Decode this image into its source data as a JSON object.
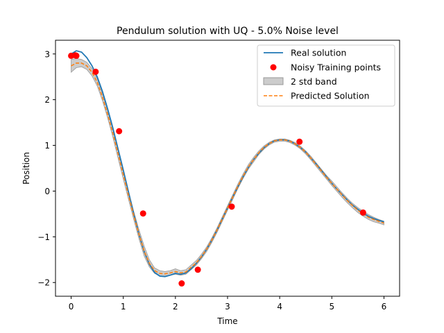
{
  "chart_data": {
    "type": "line",
    "title": "Pendulum solution with UQ - 5.0% Noise level",
    "xlabel": "Time",
    "ylabel": "Position",
    "xlim": [
      -0.3,
      6.3
    ],
    "ylim": [
      -2.3,
      3.3
    ],
    "x_ticks": [
      0,
      1,
      2,
      3,
      4,
      5,
      6
    ],
    "x_tick_labels": [
      "0",
      "1",
      "2",
      "3",
      "4",
      "5",
      "6"
    ],
    "y_ticks": [
      -2,
      -1,
      0,
      1,
      2,
      3
    ],
    "y_tick_labels": [
      "−2",
      "−1",
      "0",
      "1",
      "2",
      "3"
    ],
    "grid": false,
    "legend_position": "top-right",
    "colors": {
      "real": "#1f77b4",
      "noisy": "#ff0000",
      "band": "#cccccc",
      "band_edge": "#999999",
      "predicted": "#ff7f0e"
    },
    "series": [
      {
        "name": "Real solution",
        "kind": "line",
        "x": [
          0,
          0.1,
          0.2,
          0.3,
          0.4,
          0.5,
          0.6,
          0.7,
          0.8,
          0.9,
          1.0,
          1.1,
          1.2,
          1.3,
          1.4,
          1.5,
          1.6,
          1.7,
          1.8,
          1.9,
          2.0,
          2.1,
          2.2,
          2.3,
          2.4,
          2.5,
          2.6,
          2.7,
          2.8,
          2.9,
          3.0,
          3.1,
          3.2,
          3.3,
          3.4,
          3.5,
          3.6,
          3.7,
          3.8,
          3.9,
          4.0,
          4.1,
          4.2,
          4.3,
          4.4,
          4.5,
          4.6,
          4.7,
          4.8,
          4.9,
          5.0,
          5.1,
          5.2,
          5.3,
          5.4,
          5.5,
          5.6,
          5.7,
          5.8,
          5.9,
          6.0
        ],
        "y": [
          3.0,
          3.07,
          3.04,
          2.92,
          2.74,
          2.5,
          2.18,
          1.8,
          1.38,
          0.92,
          0.46,
          -0.02,
          -0.5,
          -0.94,
          -1.32,
          -1.6,
          -1.78,
          -1.86,
          -1.87,
          -1.84,
          -1.8,
          -1.82,
          -1.79,
          -1.7,
          -1.58,
          -1.44,
          -1.27,
          -1.07,
          -0.85,
          -0.61,
          -0.37,
          -0.13,
          0.1,
          0.32,
          0.52,
          0.69,
          0.83,
          0.95,
          1.04,
          1.1,
          1.12,
          1.12,
          1.09,
          1.03,
          0.95,
          0.85,
          0.72,
          0.59,
          0.45,
          0.31,
          0.17,
          0.04,
          -0.08,
          -0.2,
          -0.31,
          -0.4,
          -0.48,
          -0.55,
          -0.6,
          -0.64,
          -0.67
        ]
      },
      {
        "name": "Noisy Training points",
        "kind": "scatter",
        "x": [
          0.0,
          0.08,
          0.1,
          0.47,
          0.92,
          1.38,
          2.12,
          2.43,
          3.08,
          4.38,
          5.6
        ],
        "y": [
          2.96,
          2.97,
          2.96,
          2.61,
          1.31,
          -0.49,
          -2.02,
          -1.72,
          -0.34,
          1.08,
          -0.47
        ]
      },
      {
        "name": "2 std band",
        "kind": "band",
        "x": [
          0,
          0.1,
          0.2,
          0.3,
          0.4,
          0.5,
          0.6,
          0.7,
          0.8,
          0.9,
          1.0,
          1.1,
          1.2,
          1.3,
          1.4,
          1.5,
          1.6,
          1.7,
          1.8,
          1.9,
          2.0,
          2.1,
          2.2,
          2.3,
          2.4,
          2.5,
          2.6,
          2.7,
          2.8,
          2.9,
          3.0,
          3.1,
          3.2,
          3.3,
          3.4,
          3.5,
          3.6,
          3.7,
          3.8,
          3.9,
          4.0,
          4.1,
          4.2,
          4.3,
          4.4,
          4.5,
          4.6,
          4.7,
          4.8,
          4.9,
          5.0,
          5.1,
          5.2,
          5.3,
          5.4,
          5.5,
          5.6,
          5.7,
          5.8,
          5.9,
          6.0
        ],
        "lower": [
          2.6,
          2.7,
          2.72,
          2.66,
          2.52,
          2.3,
          1.98,
          1.6,
          1.18,
          0.72,
          0.26,
          -0.18,
          -0.62,
          -1.04,
          -1.42,
          -1.66,
          -1.8,
          -1.86,
          -1.86,
          -1.84,
          -1.82,
          -1.84,
          -1.82,
          -1.72,
          -1.62,
          -1.48,
          -1.32,
          -1.12,
          -0.9,
          -0.66,
          -0.42,
          -0.18,
          0.06,
          0.28,
          0.48,
          0.64,
          0.8,
          0.92,
          1.01,
          1.07,
          1.09,
          1.09,
          1.06,
          1.0,
          0.92,
          0.81,
          0.68,
          0.54,
          0.4,
          0.26,
          0.12,
          -0.01,
          -0.14,
          -0.26,
          -0.37,
          -0.47,
          -0.55,
          -0.62,
          -0.67,
          -0.7,
          -0.74
        ],
        "upper": [
          2.88,
          2.9,
          2.88,
          2.82,
          2.68,
          2.46,
          2.14,
          1.76,
          1.36,
          0.92,
          0.46,
          0.0,
          -0.44,
          -0.84,
          -1.2,
          -1.5,
          -1.68,
          -1.74,
          -1.76,
          -1.74,
          -1.7,
          -1.74,
          -1.72,
          -1.62,
          -1.52,
          -1.38,
          -1.22,
          -1.02,
          -0.8,
          -0.56,
          -0.32,
          -0.08,
          0.16,
          0.38,
          0.58,
          0.74,
          0.88,
          0.99,
          1.07,
          1.12,
          1.14,
          1.14,
          1.11,
          1.06,
          0.98,
          0.88,
          0.76,
          0.62,
          0.48,
          0.34,
          0.22,
          0.09,
          -0.04,
          -0.16,
          -0.27,
          -0.36,
          -0.44,
          -0.51,
          -0.57,
          -0.62,
          -0.66
        ]
      },
      {
        "name": "Predicted Solution",
        "kind": "dashed-line",
        "x": [
          0,
          0.1,
          0.2,
          0.3,
          0.4,
          0.5,
          0.6,
          0.7,
          0.8,
          0.9,
          1.0,
          1.1,
          1.2,
          1.3,
          1.4,
          1.5,
          1.6,
          1.7,
          1.8,
          1.9,
          2.0,
          2.1,
          2.2,
          2.3,
          2.4,
          2.5,
          2.6,
          2.7,
          2.8,
          2.9,
          3.0,
          3.1,
          3.2,
          3.3,
          3.4,
          3.5,
          3.6,
          3.7,
          3.8,
          3.9,
          4.0,
          4.1,
          4.2,
          4.3,
          4.4,
          4.5,
          4.6,
          4.7,
          4.8,
          4.9,
          5.0,
          5.1,
          5.2,
          5.3,
          5.4,
          5.5,
          5.6,
          5.7,
          5.8,
          5.9,
          6.0
        ],
        "y": [
          2.74,
          2.8,
          2.8,
          2.74,
          2.6,
          2.38,
          2.06,
          1.68,
          1.27,
          0.82,
          0.36,
          -0.09,
          -0.53,
          -0.94,
          -1.31,
          -1.58,
          -1.74,
          -1.8,
          -1.81,
          -1.79,
          -1.76,
          -1.79,
          -1.77,
          -1.67,
          -1.57,
          -1.43,
          -1.27,
          -1.07,
          -0.85,
          -0.61,
          -0.37,
          -0.13,
          0.11,
          0.33,
          0.53,
          0.69,
          0.84,
          0.96,
          1.04,
          1.1,
          1.12,
          1.12,
          1.09,
          1.03,
          0.95,
          0.85,
          0.72,
          0.58,
          0.44,
          0.3,
          0.17,
          0.04,
          -0.09,
          -0.21,
          -0.32,
          -0.42,
          -0.5,
          -0.57,
          -0.62,
          -0.66,
          -0.7
        ]
      }
    ]
  }
}
